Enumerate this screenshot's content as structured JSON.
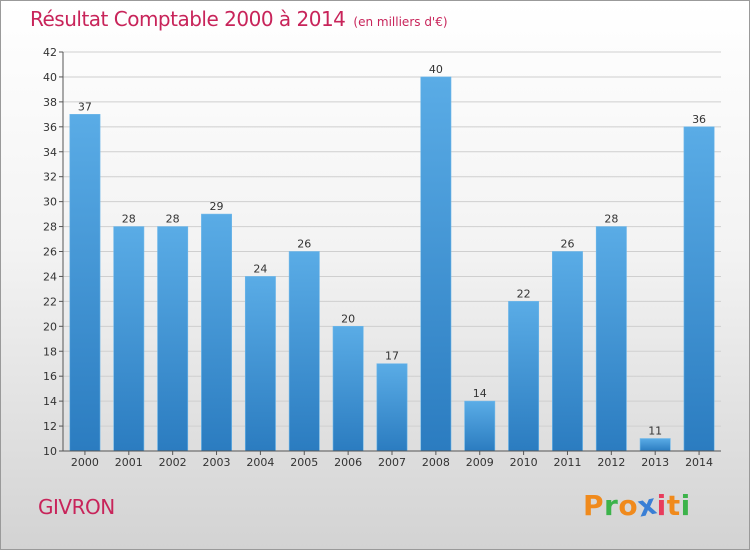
{
  "title": "Résultat Comptable 2000 à 2014",
  "subtitle": "(en milliers d'€)",
  "commune": "GIVRON",
  "brand": {
    "letters": [
      "P",
      "r",
      "o",
      "x",
      "i",
      "t",
      "i"
    ],
    "colors": [
      "#f08a1c",
      "#3cb34a",
      "#f08a1c",
      "#3a7fd5",
      "#e83c5c",
      "#f08a1c",
      "#3cb34a"
    ]
  },
  "chart_data": {
    "type": "bar",
    "categories": [
      "2000",
      "2001",
      "2002",
      "2003",
      "2004",
      "2005",
      "2006",
      "2007",
      "2008",
      "2009",
      "2010",
      "2011",
      "2012",
      "2013",
      "2014"
    ],
    "values": [
      37,
      28,
      28,
      29,
      24,
      26,
      20,
      17,
      40,
      14,
      22,
      26,
      28,
      11,
      36
    ],
    "ylim": [
      10,
      42
    ],
    "yticks": [
      10,
      12,
      14,
      16,
      18,
      20,
      22,
      24,
      26,
      28,
      30,
      32,
      34,
      36,
      38,
      40,
      42
    ],
    "grid": true,
    "bar_color_top": "#5aace6",
    "bar_color_bottom": "#2b7cc0",
    "grid_color": "#cfcfcf"
  }
}
